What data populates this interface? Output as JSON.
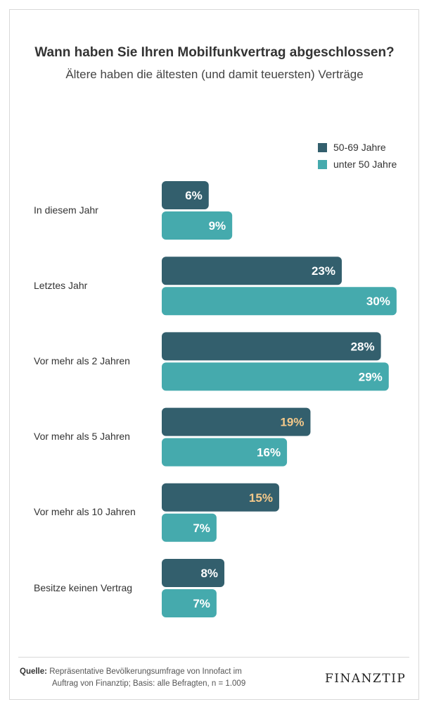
{
  "chart_data": {
    "type": "bar",
    "orientation": "horizontal",
    "title": "Wann haben Sie Ihren Mobilfunkvertrag abgeschlossen?",
    "subtitle": "Ältere haben die ältesten (und damit teuersten) Verträge",
    "categories": [
      "In diesem Jahr",
      "Letztes Jahr",
      "Vor mehr als 2 Jahren",
      "Vor mehr als 5 Jahren",
      "Vor mehr als 10 Jahren",
      "Besitze keinen Vertrag"
    ],
    "series": [
      {
        "name": "50-69 Jahre",
        "color": "#335f6d",
        "values": [
          6,
          23,
          28,
          19,
          15,
          8
        ],
        "labels": [
          "6%",
          "23%",
          "28%",
          "19%",
          "15%",
          "8%"
        ],
        "label_colors": [
          "#ffffff",
          "#ffffff",
          "#ffffff",
          "#f5c98a",
          "#f5c98a",
          "#ffffff"
        ]
      },
      {
        "name": "unter 50 Jahre",
        "color": "#45aaad",
        "values": [
          9,
          30,
          29,
          16,
          7,
          7
        ],
        "labels": [
          "9%",
          "30%",
          "29%",
          "16%",
          "7%",
          "7%"
        ],
        "label_colors": [
          "#ffffff",
          "#ffffff",
          "#ffffff",
          "#ffffff",
          "#ffffff",
          "#ffffff"
        ]
      }
    ],
    "xlim": [
      0,
      30
    ],
    "legend": "top-right",
    "grid": false
  },
  "footer": {
    "source_label": "Quelle:",
    "source_line1": "Repräsentative Bevölkerungsumfrage von Innofact im",
    "source_line2": "Auftrag von Finanztip; Basis: alle Befragten, n = 1.009",
    "logo": "FINANZTIP"
  }
}
